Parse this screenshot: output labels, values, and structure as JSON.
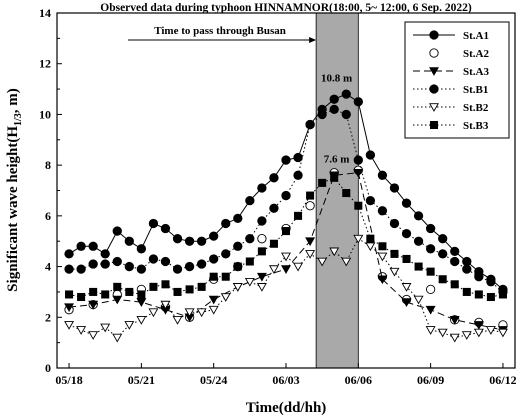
{
  "chart_data": {
    "type": "line",
    "title": "Observed data during typhoon HINNAMNOR(18:00, 5~ 12:00, 6  Sep. 2022)",
    "xlabel": "Time(dd/hh)",
    "ylabel": "Significant wave height(H1/3, m)",
    "ylabel_parts": {
      "main": "Significant wave height(H",
      "sub": "1/3",
      "end": ", m)"
    },
    "x_tick_labels": [
      "05/18",
      "05/21",
      "05/24",
      "06/03",
      "06/06",
      "06/09",
      "06/12"
    ],
    "x_tick_hours": [
      0,
      3,
      6,
      9,
      12,
      15,
      18
    ],
    "xlim": [
      -0.5,
      18.5
    ],
    "ylim": [
      0,
      14
    ],
    "y_ticks": [
      "0",
      "2",
      "4",
      "6",
      "8",
      "10",
      "12",
      "14"
    ],
    "shaded_band": {
      "from_hour": 10.25,
      "to_hour": 12.0,
      "color": "#a9a9a9",
      "label": "Time to pass through Busan"
    },
    "annotations": [
      {
        "text": "10.8 m",
        "hour": 11.1,
        "value": 11.3
      },
      {
        "text": "7.6 m",
        "hour": 11.1,
        "value": 8.1
      }
    ],
    "legend_position": "top-right",
    "series": [
      {
        "name": "St.A1",
        "line": "solid",
        "marker": "circle-filled",
        "x": [
          0,
          0.5,
          1,
          1.5,
          2,
          2.5,
          3,
          3.5,
          4,
          4.5,
          5,
          5.5,
          6,
          6.5,
          7,
          7.5,
          8,
          8.5,
          9,
          9.5,
          10,
          10.5,
          11,
          11.5,
          12,
          12.5,
          13,
          13.5,
          14,
          14.5,
          15,
          15.5,
          16,
          16.5,
          17,
          17.5,
          18
        ],
        "values": [
          4.5,
          4.8,
          4.8,
          4.5,
          5.4,
          5.0,
          4.7,
          5.7,
          5.5,
          5.1,
          5.0,
          5.0,
          5.2,
          5.7,
          5.9,
          6.6,
          7.1,
          7.5,
          8.2,
          8.3,
          9.6,
          10.2,
          10.6,
          10.8,
          10.5,
          8.4,
          7.6,
          7.1,
          6.5,
          6.0,
          5.5,
          5.1,
          4.6,
          4.2,
          3.8,
          3.5,
          3.1
        ]
      },
      {
        "name": "St.A2",
        "line": "none",
        "marker": "circle-open",
        "x": [
          0,
          1,
          2,
          3,
          4,
          5,
          6,
          7,
          8,
          9,
          10,
          11,
          12,
          13,
          14,
          15,
          16,
          17,
          18
        ],
        "values": [
          2.3,
          2.5,
          2.9,
          3.1,
          2.4,
          2.0,
          3.5,
          4.0,
          5.1,
          5.5,
          6.4,
          7.7,
          7.8,
          3.6,
          2.7,
          3.1,
          1.9,
          1.8,
          1.7
        ]
      },
      {
        "name": "St.A3",
        "line": "dashed",
        "marker": "triangle-down-filled",
        "x": [
          0,
          1,
          2,
          3,
          4,
          5,
          6,
          7,
          8,
          9,
          10,
          11,
          12,
          13,
          14,
          15,
          16,
          17,
          18
        ],
        "values": [
          2.4,
          2.5,
          2.7,
          2.6,
          2.3,
          2.0,
          2.7,
          3.2,
          3.6,
          3.9,
          5.0,
          7.6,
          7.7,
          3.5,
          2.6,
          2.3,
          1.9,
          1.7,
          1.5
        ]
      },
      {
        "name": "St.B1",
        "line": "dotted",
        "marker": "circle-filled",
        "x": [
          0,
          0.5,
          1,
          1.5,
          2,
          2.5,
          3,
          3.5,
          4,
          4.5,
          5,
          5.5,
          6,
          6.5,
          7,
          7.5,
          8,
          8.5,
          9,
          9.5,
          10,
          10.5,
          11,
          11.5,
          12,
          12.5,
          13,
          13.5,
          14,
          14.5,
          15,
          15.5,
          16,
          16.5,
          17,
          17.5,
          18
        ],
        "values": [
          3.9,
          3.9,
          4.1,
          4.1,
          4.2,
          4.0,
          3.9,
          4.3,
          4.2,
          3.9,
          4.0,
          4.1,
          4.3,
          4.5,
          4.8,
          5.1,
          5.8,
          6.3,
          6.8,
          7.6,
          9.6,
          10.0,
          10.2,
          10.0,
          8.2,
          6.6,
          6.2,
          5.7,
          5.3,
          5.0,
          4.7,
          4.5,
          4.2,
          3.9,
          3.6,
          3.4,
          3.0
        ]
      },
      {
        "name": "St.B2",
        "line": "dotted",
        "marker": "triangle-down-open",
        "x": [
          0,
          0.5,
          1,
          1.5,
          2,
          2.5,
          3,
          3.5,
          4,
          4.5,
          5,
          5.5,
          6,
          6.5,
          7,
          7.5,
          8,
          8.5,
          9,
          9.5,
          10,
          10.5,
          11,
          11.5,
          12,
          12.5,
          13,
          13.5,
          14,
          14.5,
          15,
          15.5,
          16,
          16.5,
          17,
          17.5,
          18
        ],
        "values": [
          1.7,
          1.5,
          1.3,
          1.6,
          1.2,
          1.7,
          1.9,
          2.2,
          2.5,
          1.9,
          2.2,
          2.2,
          2.3,
          2.8,
          3.2,
          3.4,
          3.2,
          3.9,
          4.4,
          4.0,
          4.5,
          4.2,
          4.6,
          4.2,
          5.1,
          4.8,
          4.4,
          3.8,
          3.2,
          2.7,
          1.5,
          1.4,
          1.2,
          1.3,
          1.4,
          1.5,
          1.4
        ]
      },
      {
        "name": "St.B3",
        "line": "dotted",
        "marker": "square-filled",
        "x": [
          0,
          0.5,
          1,
          1.5,
          2,
          2.5,
          3,
          3.5,
          4,
          4.5,
          5,
          5.5,
          6,
          6.5,
          7,
          7.5,
          8,
          8.5,
          9,
          9.5,
          10,
          10.5,
          11,
          11.5,
          12,
          12.5,
          13,
          13.5,
          14,
          14.5,
          15,
          15.5,
          16,
          16.5,
          17,
          17.5,
          18
        ],
        "values": [
          2.9,
          2.8,
          3.0,
          2.9,
          3.2,
          3.0,
          2.9,
          3.2,
          3.3,
          3.0,
          3.1,
          3.2,
          3.6,
          3.6,
          4.0,
          4.2,
          4.6,
          4.9,
          5.4,
          6.0,
          6.8,
          7.3,
          7.5,
          6.9,
          6.4,
          5.1,
          4.8,
          4.5,
          4.3,
          4.0,
          3.8,
          3.5,
          3.3,
          3.0,
          2.9,
          2.8,
          2.9
        ]
      }
    ]
  }
}
